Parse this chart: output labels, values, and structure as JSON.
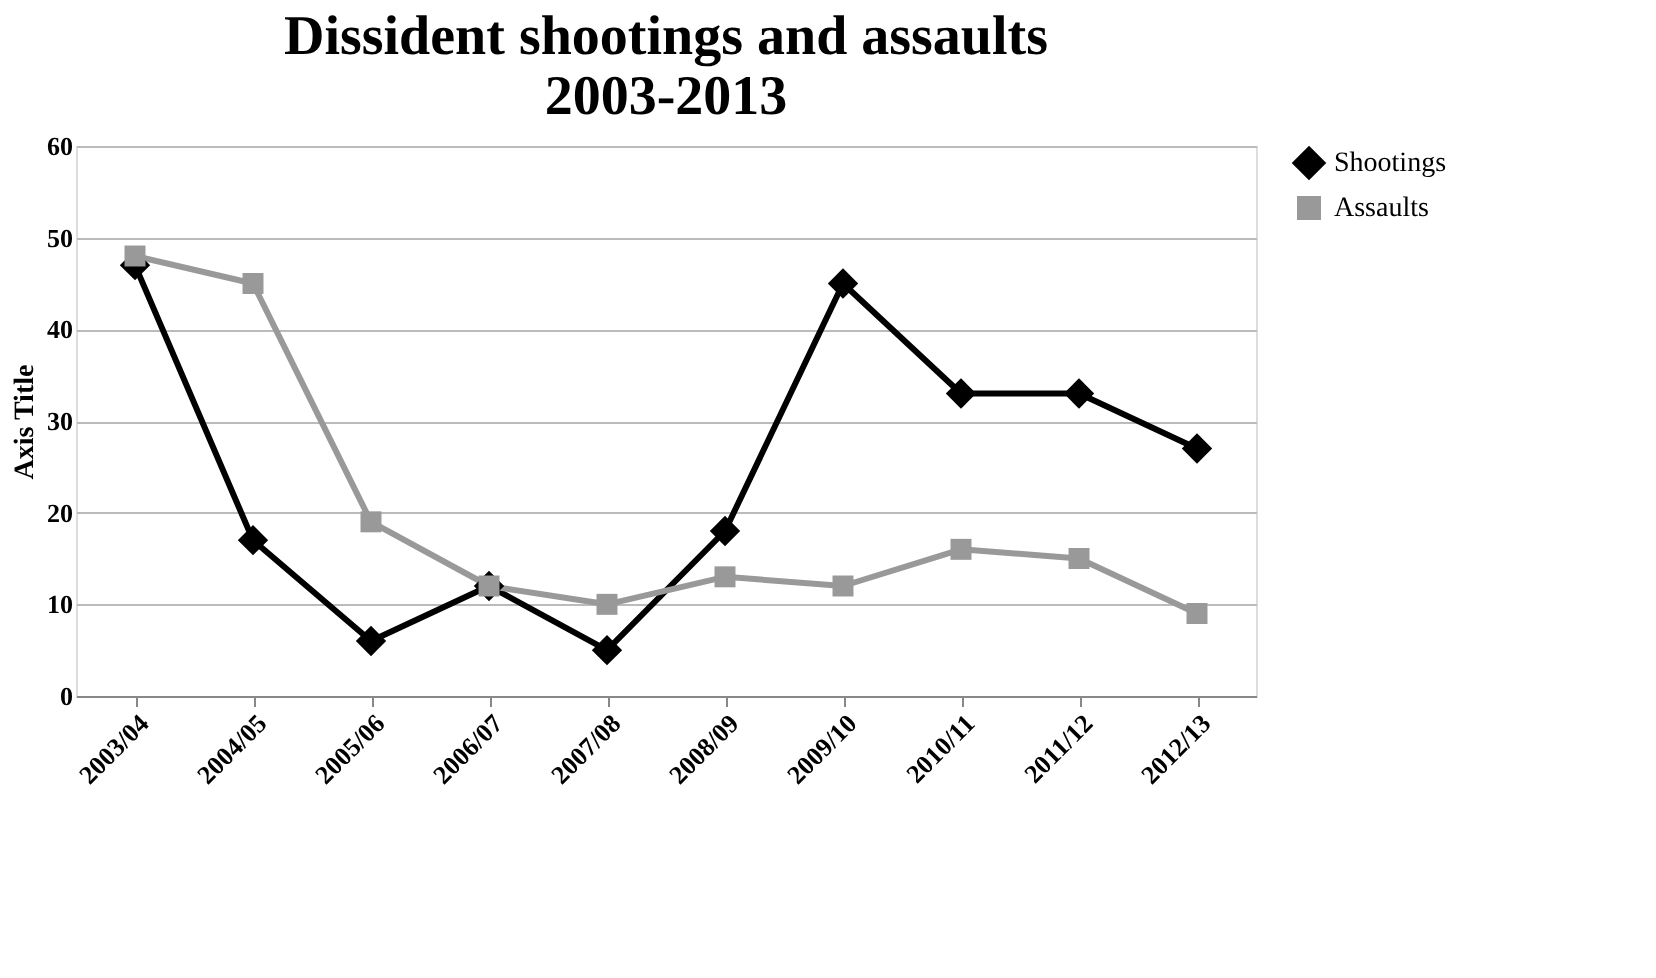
{
  "chart_data": {
    "type": "line",
    "title": "Dissident shootings and assaults 2003-2013",
    "ylabel": "Axis Title",
    "categories": [
      "2003/04",
      "2004/05",
      "2005/06",
      "2006/07",
      "2007/08",
      "2008/09",
      "2009/10",
      "2010/11",
      "2011/12",
      "2012/13"
    ],
    "series": [
      {
        "name": "Shootings",
        "color": "#000000",
        "marker": "diamond",
        "values": [
          47,
          17,
          6,
          12,
          5,
          18,
          45,
          33,
          33,
          27
        ]
      },
      {
        "name": "Assaults",
        "color": "#999999",
        "marker": "square",
        "values": [
          48,
          45,
          19,
          12,
          10,
          13,
          12,
          16,
          15,
          9
        ]
      }
    ],
    "ylim": [
      0,
      60
    ],
    "yticks": [
      0,
      10,
      20,
      30,
      40,
      50,
      60
    ],
    "grid": "y",
    "legend": "right",
    "line_style": "solid"
  }
}
